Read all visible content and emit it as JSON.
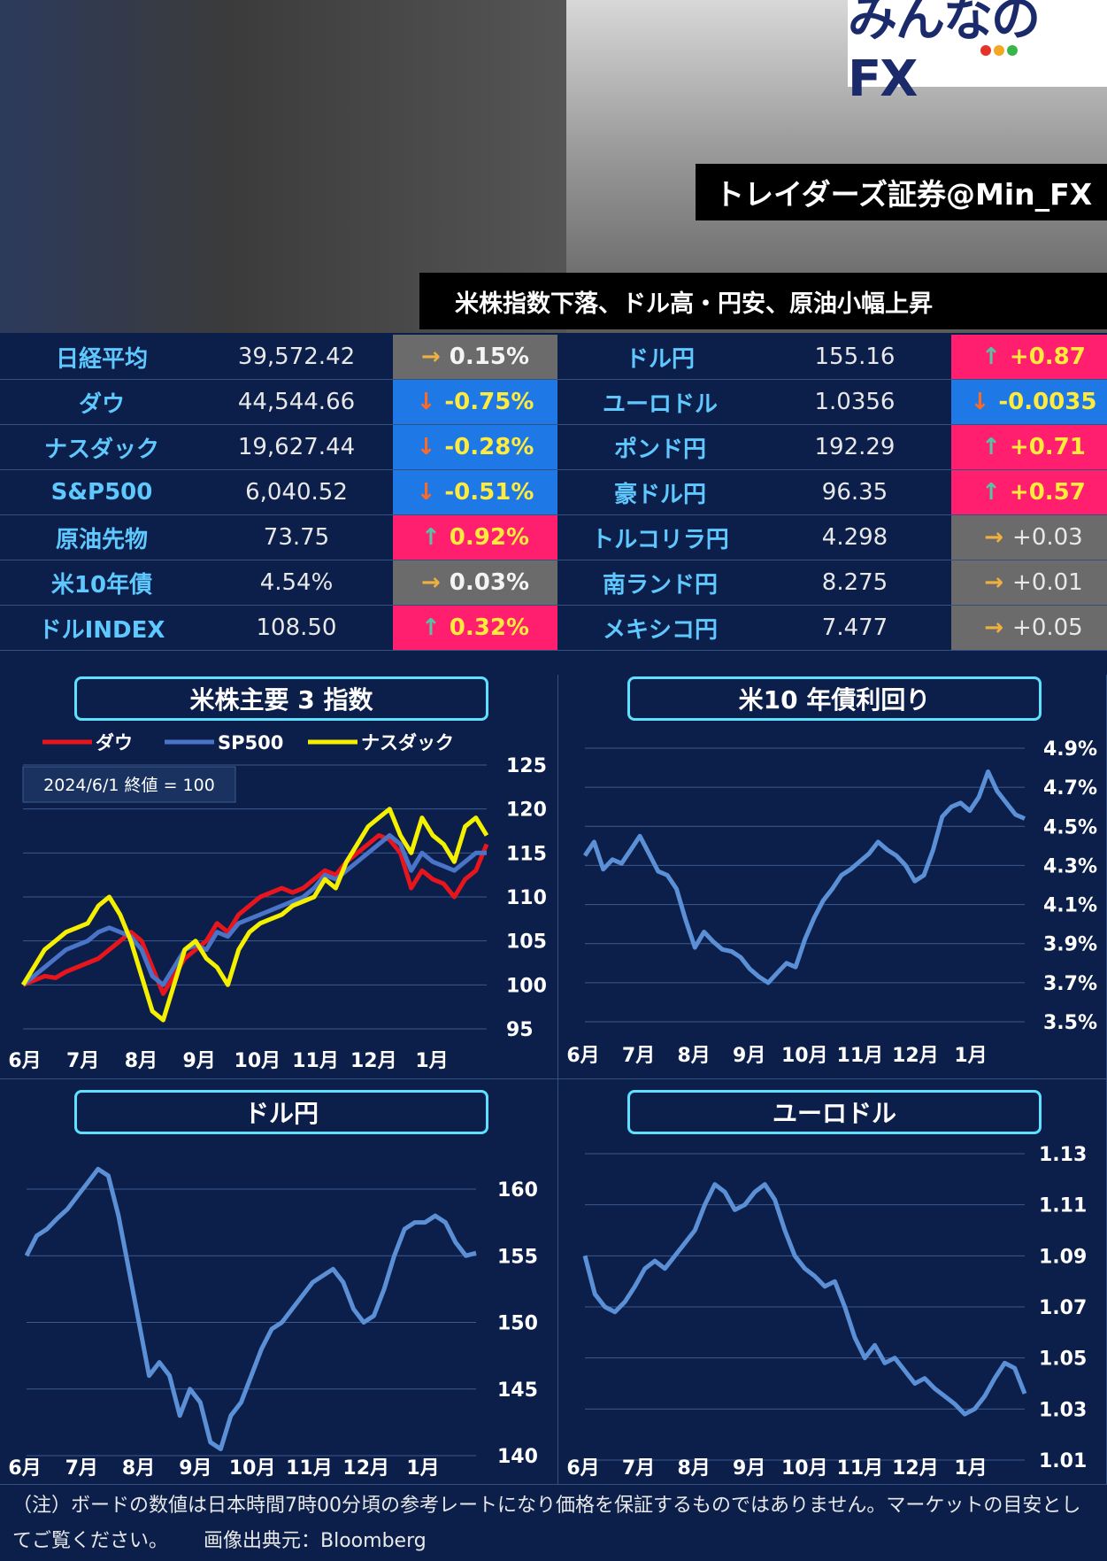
{
  "header": {
    "logo_text": "みんなのFX",
    "logo_dot_colors": [
      "#e6332a",
      "#f5a623",
      "#3ab54a"
    ],
    "badge_source": "トレイダーズ証券@Min_FX",
    "headline": "米株指数下落、ドル高・円安、原油小幅上昇"
  },
  "board_left": [
    {
      "name": "日経平均",
      "value": "39,572.42",
      "change": "0.15%",
      "dir": "flat"
    },
    {
      "name": "ダウ",
      "value": "44,544.66",
      "change": "-0.75%",
      "dir": "down"
    },
    {
      "name": "ナスダック",
      "value": "19,627.44",
      "change": "-0.28%",
      "dir": "down"
    },
    {
      "name": "S&P500",
      "value": "6,040.52",
      "change": "-0.51%",
      "dir": "down"
    },
    {
      "name": "原油先物",
      "value": "73.75",
      "change": "0.92%",
      "dir": "up"
    },
    {
      "name": "米10年債",
      "value": "4.54%",
      "change": "0.03%",
      "dir": "flat"
    },
    {
      "name": "ドルINDEX",
      "value": "108.50",
      "change": "0.32%",
      "dir": "up"
    }
  ],
  "board_right": [
    {
      "name": "ドル円",
      "value": "155.16",
      "change": "+0.87",
      "dir": "up"
    },
    {
      "name": "ユーロドル",
      "value": "1.0356",
      "change": "-0.0035",
      "dir": "down"
    },
    {
      "name": "ポンド円",
      "value": "192.29",
      "change": "+0.71",
      "dir": "up"
    },
    {
      "name": "豪ドル円",
      "value": "96.35",
      "change": "+0.57",
      "dir": "up"
    },
    {
      "name": "トルコリラ円",
      "value": "4.298",
      "change": "+0.03",
      "dir": "flat"
    },
    {
      "name": "南ランド円",
      "value": "8.275",
      "change": "+0.01",
      "dir": "flat"
    },
    {
      "name": "メキシコ円",
      "value": "7.477",
      "change": "+0.05",
      "dir": "flat"
    }
  ],
  "colors": {
    "up": "#ff1f6e",
    "down": "#1e78e6",
    "flat": "#6b6b6b",
    "line": "#5b8fd6",
    "dow": "#e8161c",
    "sp": "#4a74c8",
    "nasdaq": "#f5f000"
  },
  "chart_data": [
    {
      "type": "line",
      "title": "米株主要 3 指数",
      "annotation": "2024/6/1 終値 = 100",
      "xticks": [
        "6月",
        "7月",
        "8月",
        "9月",
        "10月",
        "11月",
        "12月",
        "1月"
      ],
      "yticks": [
        95,
        100,
        105,
        110,
        115,
        120,
        125
      ],
      "ylim": [
        95,
        125
      ],
      "legend": "top-left",
      "series": [
        {
          "name": "ダウ",
          "values": [
            100,
            100.5,
            101,
            100.8,
            101.5,
            102,
            102.5,
            103,
            104,
            105,
            106,
            105,
            102,
            99,
            101,
            103,
            104,
            105,
            107,
            106,
            108,
            109,
            110,
            110.5,
            111,
            110.5,
            111,
            112,
            113,
            112.5,
            114,
            115,
            116,
            117,
            116.5,
            115,
            111,
            113,
            112,
            111.5,
            110,
            112,
            113,
            116
          ]
        },
        {
          "name": "SP500",
          "values": [
            100,
            101,
            102,
            103,
            104,
            104.5,
            105,
            106,
            106.5,
            106,
            105.5,
            104,
            101,
            100,
            102,
            104,
            104.5,
            104,
            106,
            105.5,
            107,
            107.5,
            108,
            108.5,
            109,
            109.5,
            110,
            111,
            112.5,
            112,
            113,
            114,
            115,
            116,
            117,
            116,
            113,
            115,
            114,
            113.5,
            113,
            114,
            115,
            115
          ]
        },
        {
          "name": "ナスダック",
          "values": [
            100,
            102,
            104,
            105,
            106,
            106.5,
            107,
            109,
            110,
            108,
            105,
            101,
            97,
            96,
            100,
            104,
            105,
            103,
            102,
            100,
            104,
            106,
            107,
            107.5,
            108,
            109,
            109.5,
            110,
            112,
            111,
            114,
            116,
            118,
            119,
            120,
            117,
            115,
            119,
            117,
            116,
            114,
            118,
            119,
            117
          ]
        }
      ]
    },
    {
      "type": "line",
      "title": "米10 年債利回り",
      "xticks": [
        "6月",
        "7月",
        "8月",
        "9月",
        "10月",
        "11月",
        "12月",
        "1月"
      ],
      "yticks": [
        "3.5%",
        "3.7%",
        "3.9%",
        "4.1%",
        "4.3%",
        "4.5%",
        "4.7%",
        "4.9%"
      ],
      "ylim": [
        3.5,
        4.9
      ],
      "series": [
        {
          "values": [
            4.35,
            4.42,
            4.28,
            4.33,
            4.31,
            4.38,
            4.45,
            4.36,
            4.27,
            4.25,
            4.18,
            4.02,
            3.88,
            3.96,
            3.91,
            3.87,
            3.86,
            3.83,
            3.77,
            3.73,
            3.7,
            3.75,
            3.8,
            3.78,
            3.92,
            4.03,
            4.12,
            4.18,
            4.25,
            4.28,
            4.32,
            4.36,
            4.42,
            4.38,
            4.35,
            4.3,
            4.22,
            4.25,
            4.38,
            4.55,
            4.6,
            4.62,
            4.58,
            4.65,
            4.78,
            4.68,
            4.62,
            4.56,
            4.54
          ]
        }
      ]
    },
    {
      "type": "line",
      "title": "ドル円",
      "xticks": [
        "6月",
        "7月",
        "8月",
        "9月",
        "10月",
        "11月",
        "12月",
        "1月"
      ],
      "yticks": [
        140,
        145,
        150,
        155,
        160
      ],
      "ylim": [
        139,
        163
      ],
      "series": [
        {
          "values": [
            155,
            156.5,
            157,
            157.8,
            158.5,
            159.5,
            160.5,
            161.5,
            161,
            158,
            154,
            150,
            146,
            147,
            146,
            143,
            145,
            144,
            141,
            140.5,
            143,
            144,
            146,
            148,
            149.5,
            150,
            151,
            152,
            153,
            153.5,
            154,
            153,
            151,
            150,
            150.5,
            152.5,
            155,
            157,
            157.5,
            157.5,
            158,
            157.5,
            156,
            155,
            155.2
          ]
        }
      ]
    },
    {
      "type": "line",
      "title": "ユーロドル",
      "xticks": [
        "6月",
        "7月",
        "8月",
        "9月",
        "10月",
        "11月",
        "12月",
        "1月"
      ],
      "yticks": [
        "1.01",
        "1.03",
        "1.05",
        "1.07",
        "1.09",
        "1.11",
        "1.13"
      ],
      "ylim": [
        1.01,
        1.13
      ],
      "series": [
        {
          "values": [
            1.09,
            1.075,
            1.07,
            1.068,
            1.072,
            1.078,
            1.085,
            1.088,
            1.085,
            1.09,
            1.095,
            1.1,
            1.11,
            1.118,
            1.115,
            1.108,
            1.11,
            1.115,
            1.118,
            1.112,
            1.1,
            1.09,
            1.085,
            1.082,
            1.078,
            1.08,
            1.07,
            1.058,
            1.05,
            1.055,
            1.048,
            1.05,
            1.045,
            1.04,
            1.042,
            1.038,
            1.035,
            1.032,
            1.028,
            1.03,
            1.035,
            1.042,
            1.048,
            1.046,
            1.036
          ]
        }
      ]
    }
  ],
  "footer": {
    "note": "（注）ボードの数値は日本時間7時00分頃の参考レートになり価格を保証するものではありません。マーケットの目安としてご覧ください。",
    "source": "画像出典元：Bloomberg"
  }
}
